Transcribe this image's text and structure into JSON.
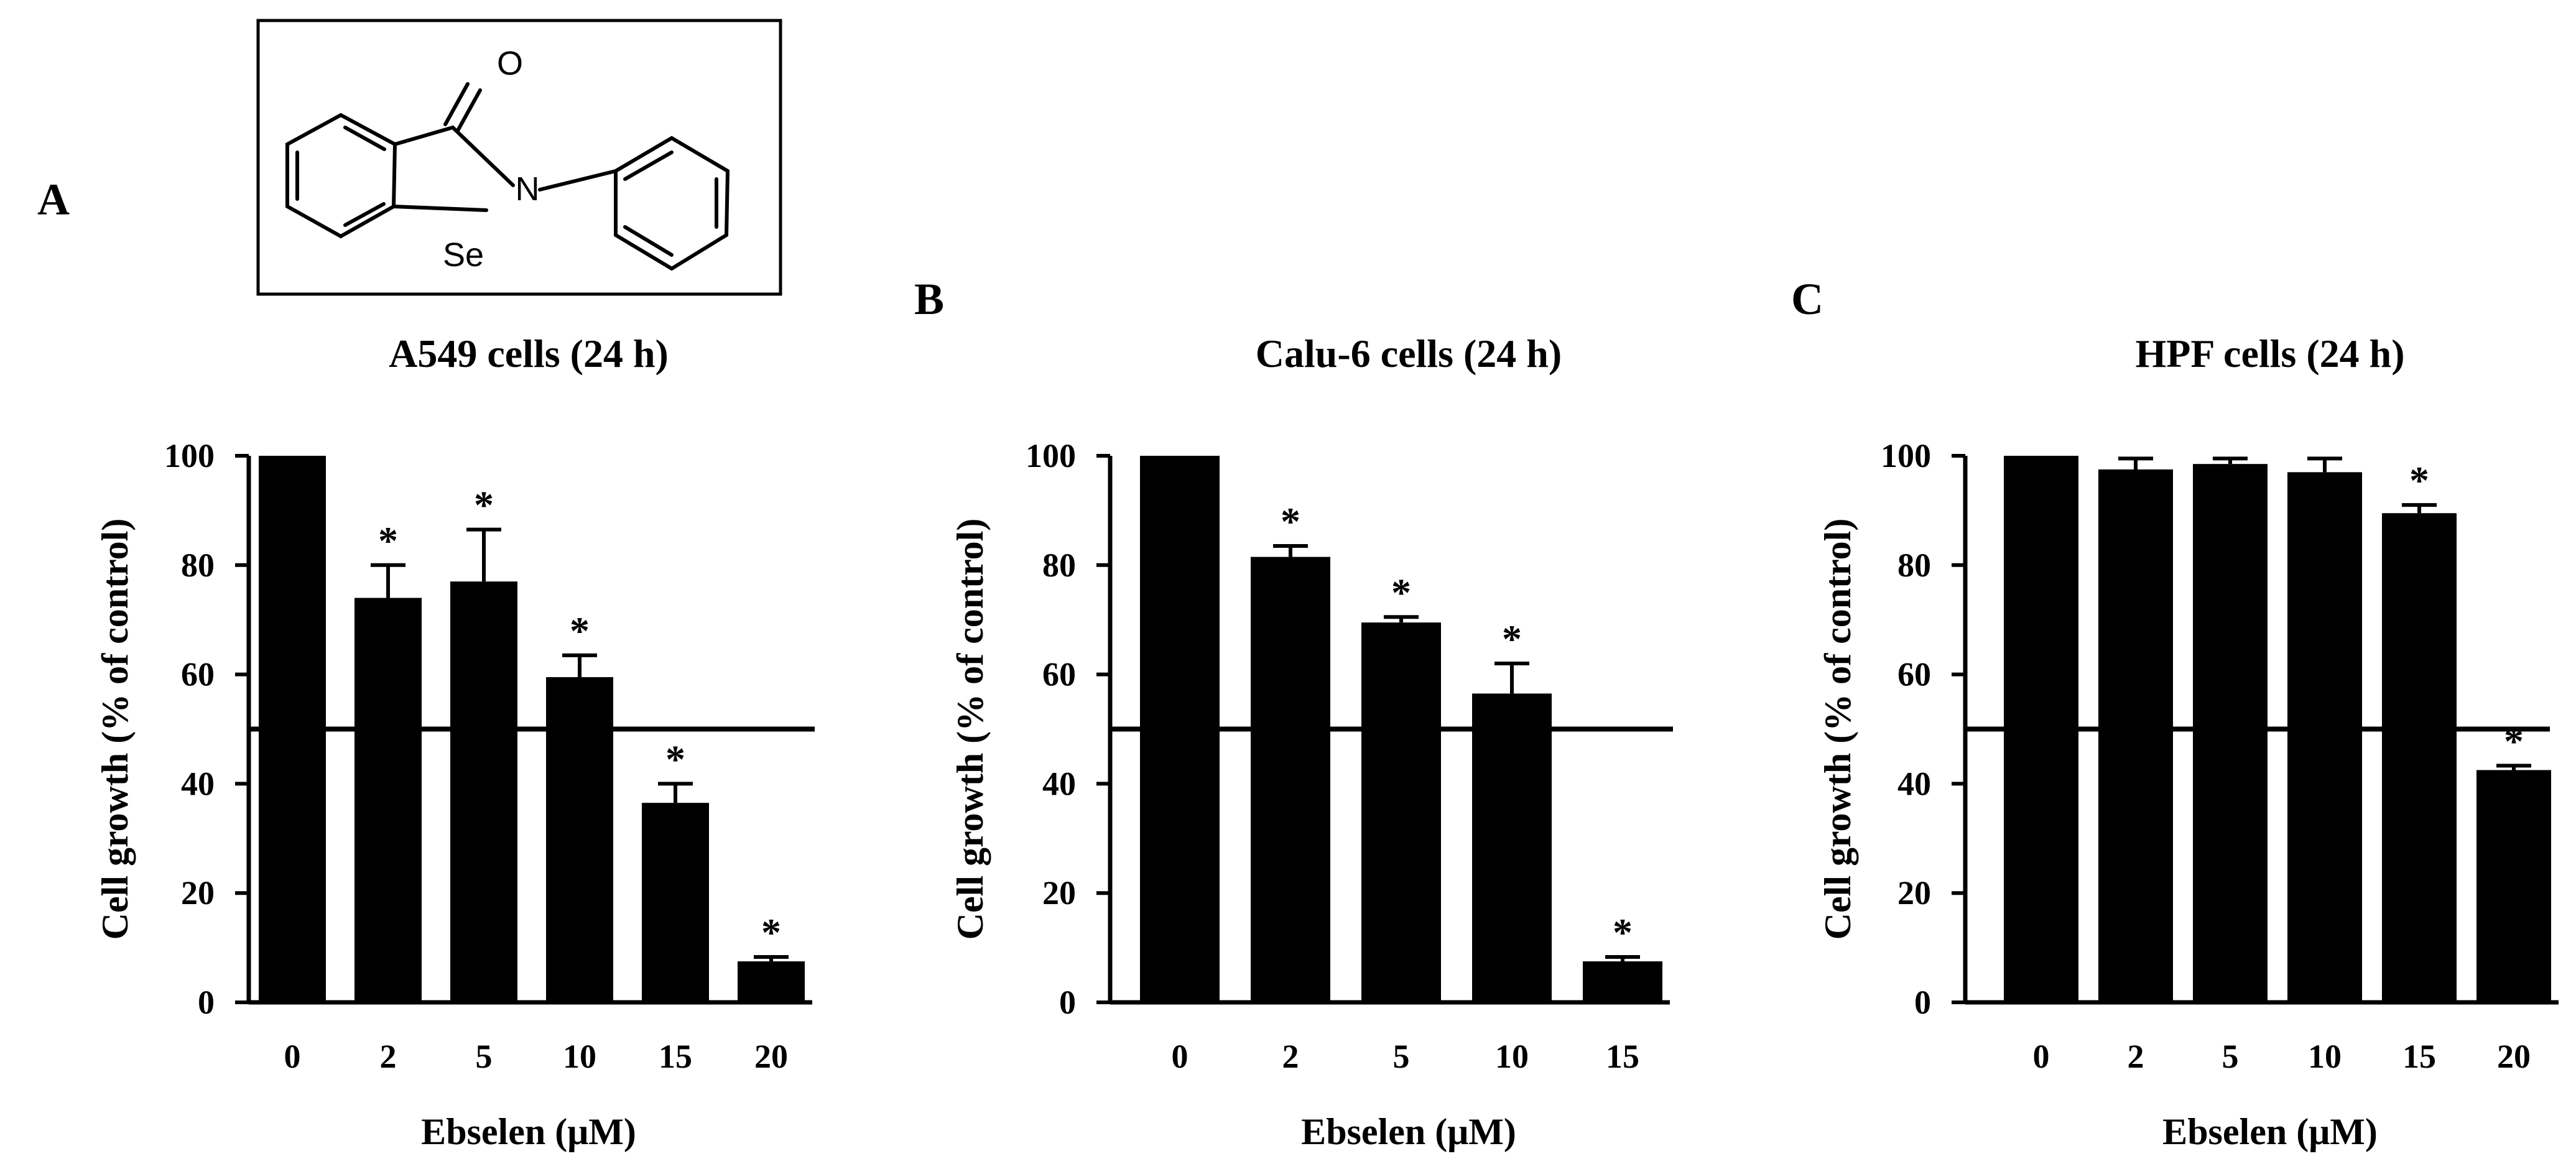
{
  "structure": {
    "atoms": {
      "oxygen": "O",
      "nitrogen": "N",
      "selenium": "Se"
    }
  },
  "chart_data": [
    {
      "panel_label": "A",
      "type": "bar",
      "title": "A549 cells (24 h)",
      "xlabel": "Ebselen (μM)",
      "ylabel": "Cell growth (% of control)",
      "categories": [
        "0",
        "2",
        "5",
        "10",
        "15",
        "20"
      ],
      "values": [
        100,
        74,
        77,
        59.5,
        36.5,
        7.5
      ],
      "errors": [
        0,
        6,
        9.5,
        4,
        3.5,
        0.8
      ],
      "significant": [
        false,
        true,
        true,
        true,
        true,
        true
      ],
      "significance_marker": "*",
      "reference_line": 50,
      "ylim": [
        0,
        100
      ],
      "yticks": [
        "0",
        "20",
        "40",
        "60",
        "80",
        "100"
      ],
      "color": "#000000"
    },
    {
      "panel_label": "B",
      "type": "bar",
      "title": "Calu-6 cells (24 h)",
      "xlabel": "Ebselen (μM)",
      "ylabel": "Cell growth (% of control)",
      "categories": [
        "0",
        "2",
        "5",
        "10",
        "15"
      ],
      "values": [
        100,
        81.5,
        69.5,
        56.5,
        7.5
      ],
      "errors": [
        0,
        2,
        1,
        5.5,
        0.8
      ],
      "significant": [
        false,
        true,
        true,
        true,
        true
      ],
      "significance_marker": "*",
      "reference_line": 50,
      "ylim": [
        0,
        100
      ],
      "yticks": [
        "0",
        "20",
        "40",
        "60",
        "80",
        "100"
      ],
      "color": "#000000"
    },
    {
      "panel_label": "C",
      "type": "bar",
      "title": "HPF cells (24 h)",
      "xlabel": "Ebselen (μM)",
      "ylabel": "Cell growth (% of control)",
      "categories": [
        "0",
        "2",
        "5",
        "10",
        "15",
        "20"
      ],
      "values": [
        100,
        97.5,
        98.5,
        97,
        89.5,
        42.5
      ],
      "errors": [
        0,
        2,
        1,
        2.5,
        1.5,
        0.8
      ],
      "significant": [
        false,
        false,
        false,
        false,
        true,
        true
      ],
      "significance_marker": "*",
      "reference_line": 50,
      "ylim": [
        0,
        100
      ],
      "yticks": [
        "0",
        "20",
        "40",
        "60",
        "80",
        "100"
      ],
      "color": "#000000"
    }
  ]
}
